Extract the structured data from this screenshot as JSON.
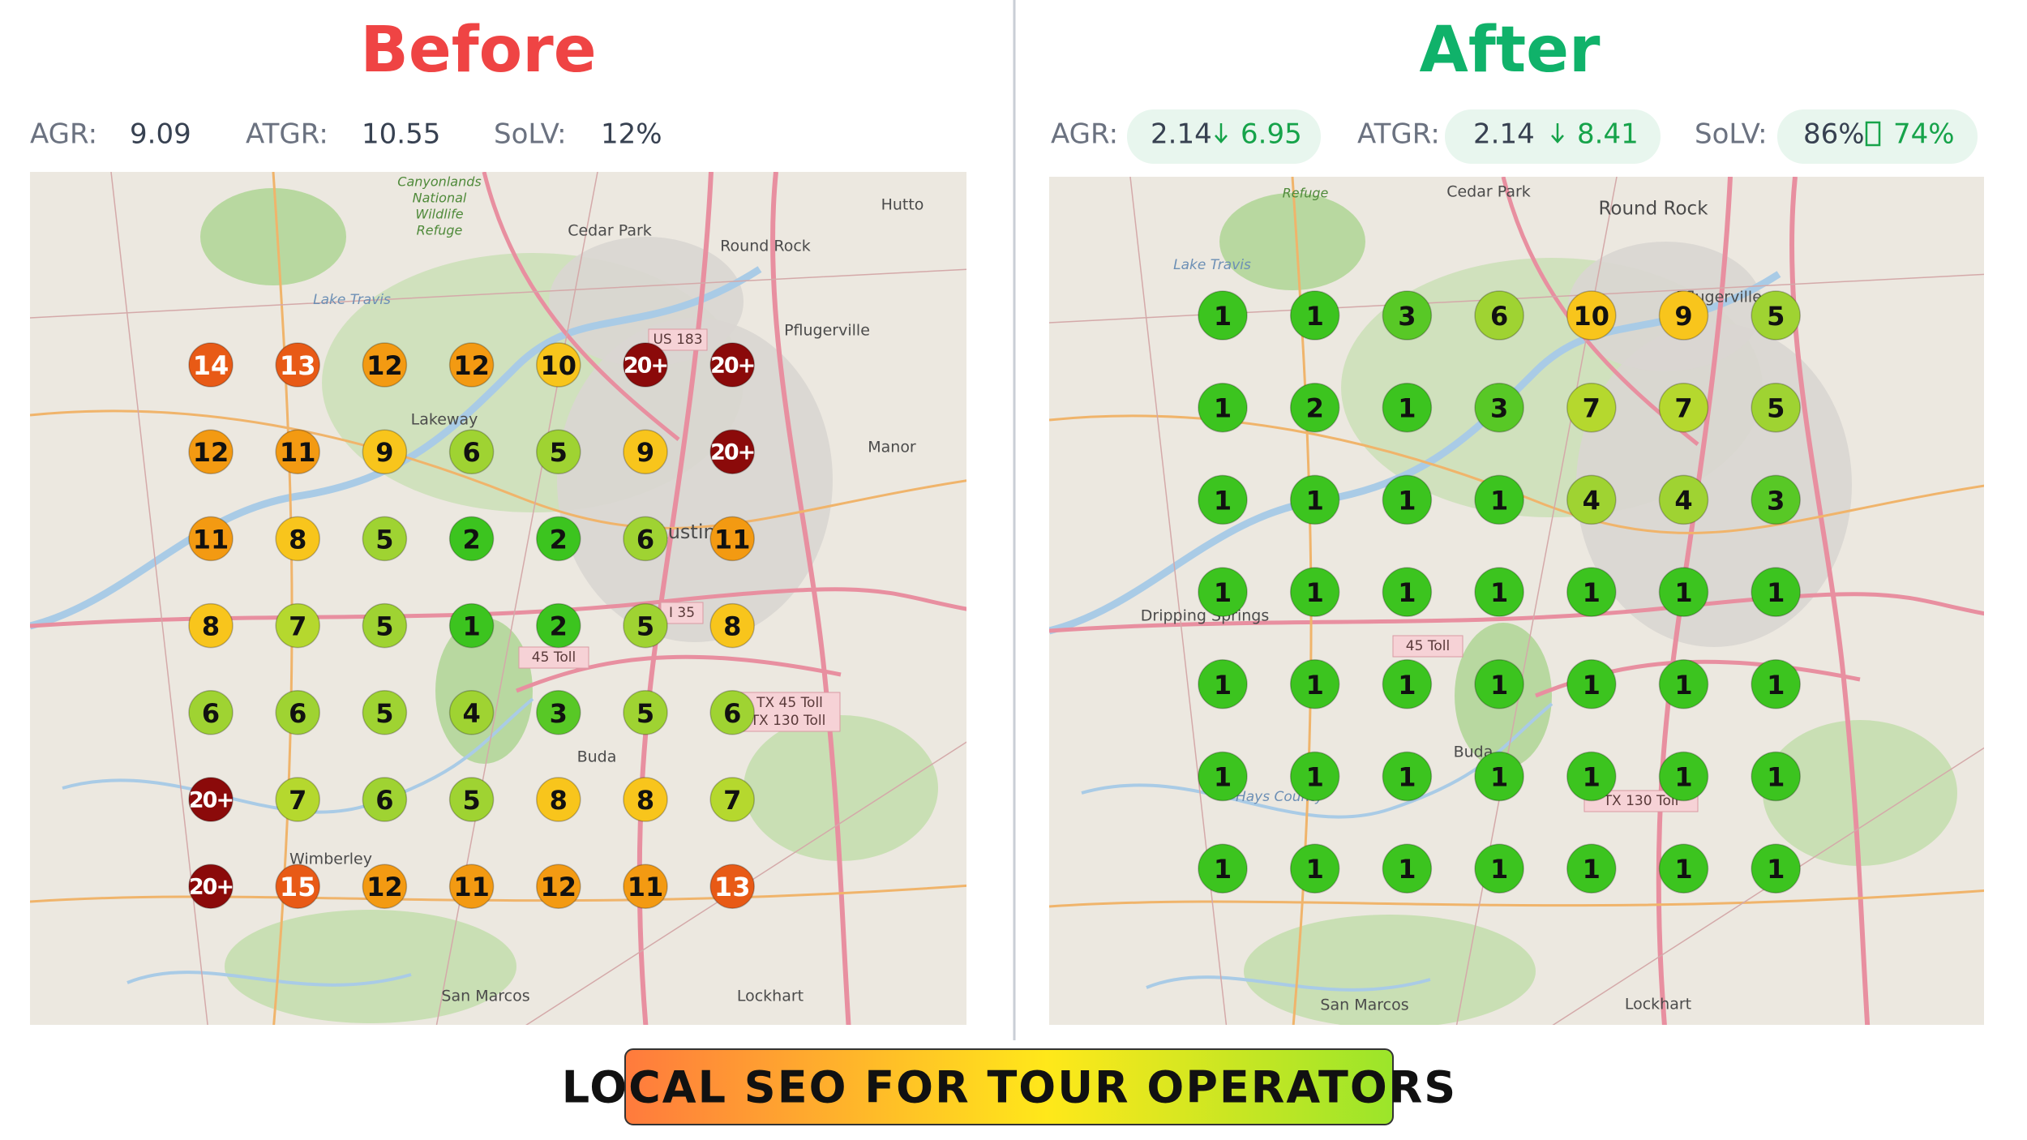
{
  "before": {
    "title": "Before",
    "metrics": [
      {
        "label": "AGR:",
        "value": "9.09"
      },
      {
        "label": "ATGR:",
        "value": "10.55"
      },
      {
        "label": "SoLV:",
        "value": "12%"
      }
    ],
    "grid": [
      [
        14,
        13,
        12,
        12,
        10,
        "20+",
        "20+"
      ],
      [
        12,
        11,
        9,
        6,
        5,
        9,
        "20+"
      ],
      [
        11,
        8,
        5,
        2,
        2,
        6,
        11
      ],
      [
        8,
        7,
        5,
        1,
        2,
        5,
        8
      ],
      [
        6,
        6,
        5,
        4,
        3,
        5,
        6
      ],
      [
        "20+",
        7,
        6,
        5,
        8,
        8,
        7
      ],
      [
        "20+",
        15,
        12,
        11,
        12,
        11,
        13
      ]
    ],
    "map_labels": [
      "Round Rock",
      "Pflugerville",
      "Cedar Park",
      "Hutto",
      "Lakeway",
      "Manor",
      "Austin",
      "Lake Travis",
      "Canyonlands",
      "National",
      "Wildlife",
      "Refuge",
      "US 183",
      "I 35",
      "45 Toll",
      "TX 45 Toll",
      "TX 130 Toll",
      "Buda",
      "Wimberley",
      "San Marcos",
      "Lockhart"
    ]
  },
  "after": {
    "title": "After",
    "metrics": [
      {
        "label": "AGR:",
        "value": "2.14",
        "new_value": "6.95"
      },
      {
        "label": "ATGR:",
        "value": "2.14",
        "new_value": "8.41"
      },
      {
        "label": "SoLV:",
        "value": "86%",
        "new_value": "74%"
      }
    ],
    "grid": [
      [
        1,
        1,
        3,
        6,
        10,
        9,
        5
      ],
      [
        1,
        2,
        1,
        3,
        7,
        7,
        5
      ],
      [
        1,
        1,
        1,
        1,
        4,
        4,
        3
      ],
      [
        1,
        1,
        1,
        1,
        1,
        1,
        1
      ],
      [
        1,
        1,
        1,
        1,
        1,
        1,
        1
      ],
      [
        1,
        1,
        1,
        1,
        1,
        1,
        1
      ],
      [
        1,
        1,
        1,
        1,
        1,
        1,
        1
      ]
    ],
    "map_labels": [
      "Cedar Park",
      "Round Rock",
      "Pflugerville",
      "Lake Travis",
      "Dripping Springs",
      "45 Toll",
      "Buda",
      "Hays County",
      "TX 130 Toll",
      "San Marcos",
      "Lockhart",
      "Refuge"
    ]
  },
  "banner": "LOCAL SEO FOR TOUR OPERATORS"
}
